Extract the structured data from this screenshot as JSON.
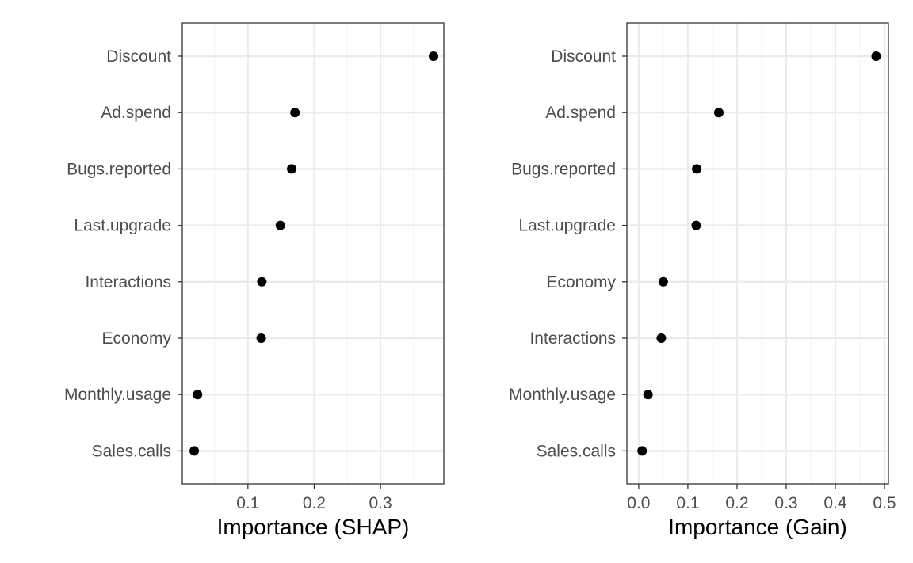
{
  "chart_data": [
    {
      "type": "scatter",
      "xlabel": "Importance (SHAP)",
      "ylabel": "",
      "xlim": [
        0.001,
        0.3955
      ],
      "xticks": [
        "0.1",
        "0.2",
        "0.3"
      ],
      "xtick_values": [
        0.1,
        0.2,
        0.3
      ],
      "grid": true,
      "categories": [
        "Discount",
        "Ad.spend",
        "Bugs.reported",
        "Last.upgrade",
        "Interactions",
        "Economy",
        "Monthly.usage",
        "Sales.calls"
      ],
      "values": [
        0.38,
        0.171,
        0.166,
        0.149,
        0.121,
        0.12,
        0.024,
        0.019
      ]
    },
    {
      "type": "scatter",
      "xlabel": "Importance (Gain)",
      "ylabel": "",
      "xlim": [
        -0.024,
        0.508
      ],
      "xticks": [
        "0.0",
        "0.1",
        "0.2",
        "0.3",
        "0.4",
        "0.5"
      ],
      "xtick_values": [
        0,
        0.1,
        0.2,
        0.3,
        0.4,
        0.5
      ],
      "grid": true,
      "categories": [
        "Discount",
        "Ad.spend",
        "Bugs.reported",
        "Last.upgrade",
        "Economy",
        "Interactions",
        "Monthly.usage",
        "Sales.calls"
      ],
      "values": [
        0.483,
        0.163,
        0.118,
        0.117,
        0.05,
        0.046,
        0.019,
        0.007
      ]
    }
  ],
  "colors": {
    "point": "#000000",
    "panel_border": "#333333",
    "grid_major": "#ebebeb",
    "grid_minor": "#f4f4f4",
    "tick_label": "#4d4d4d"
  }
}
